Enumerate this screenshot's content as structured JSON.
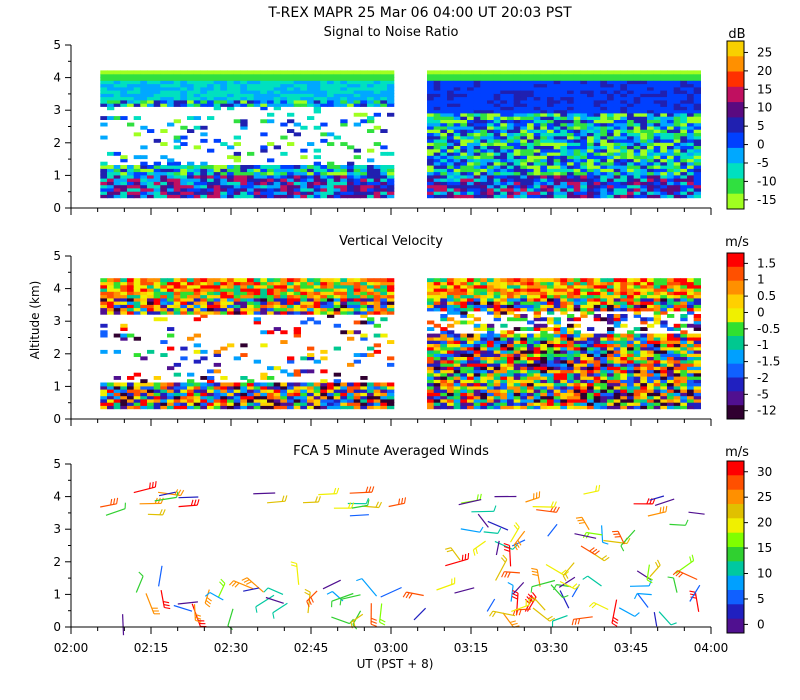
{
  "figure_title": "T-REX   MAPR 25 Mar 06   04:00 UT   20:03   PST",
  "y_axis_label": "Altitude (km)",
  "x_axis_label": "UT  (PST + 8)",
  "chart_data": [
    {
      "type": "heatmap",
      "title": "Signal to Noise Ratio",
      "ylabel": "Altitude (km)",
      "xlabel": "UT  (PST + 8)",
      "x_ticks": [
        "02:00",
        "02:15",
        "02:30",
        "02:45",
        "03:00",
        "03:15",
        "03:30",
        "03:45",
        "04:00"
      ],
      "x_range_min": [
        0,
        120
      ],
      "ylim": [
        0,
        5
      ],
      "y_ticks": [
        "0",
        "1",
        "2",
        "3",
        "4",
        "5"
      ],
      "colorbar_unit": "dB",
      "colorbar_ticks": [
        "25",
        "20",
        "15",
        "10",
        "5",
        "0",
        "-5",
        "-10",
        "-15"
      ],
      "colorbar_colors": [
        "#f8d000",
        "#ff9000",
        "#ff3000",
        "#c01060",
        "#5a0a80",
        "#2020b0",
        "#0040ff",
        "#00a8ff",
        "#00e0c0",
        "#30e040",
        "#a0ff20"
      ],
      "data_gap_min": [
        60,
        66
      ],
      "echo_top_km": 4.2
    },
    {
      "type": "heatmap",
      "title": "Vertical Velocity",
      "ylabel": "Altitude (km)",
      "xlabel": "UT  (PST + 8)",
      "x_ticks": [
        "02:00",
        "02:15",
        "02:30",
        "02:45",
        "03:00",
        "03:15",
        "03:30",
        "03:45",
        "04:00"
      ],
      "x_range_min": [
        0,
        120
      ],
      "ylim": [
        0,
        5
      ],
      "y_ticks": [
        "0",
        "1",
        "2",
        "3",
        "4",
        "5"
      ],
      "colorbar_unit": "m/s",
      "colorbar_ticks": [
        "1.5",
        "1",
        "0.5",
        "0",
        "-0.5",
        "-1",
        "-1.5",
        "-2",
        "-5",
        "-12"
      ],
      "colorbar_colors": [
        "#ff0000",
        "#ff5000",
        "#ff9000",
        "#ffd000",
        "#f0f000",
        "#30e030",
        "#00c890",
        "#00a0ff",
        "#1060ff",
        "#2020c0",
        "#501090",
        "#300030"
      ],
      "data_gap_min": [
        60,
        66
      ],
      "echo_top_km": 4.3
    },
    {
      "type": "scatter",
      "subtype": "wind-barbs",
      "title": "FCA 5 Minute Averaged Winds",
      "ylabel": "Altitude (km)",
      "xlabel": "UT  (PST + 8)",
      "x_ticks": [
        "02:00",
        "02:15",
        "02:30",
        "02:45",
        "03:00",
        "03:15",
        "03:30",
        "03:45",
        "04:00"
      ],
      "x_range_min": [
        0,
        120
      ],
      "ylim": [
        0,
        5
      ],
      "y_ticks": [
        "0",
        "1",
        "2",
        "3",
        "4",
        "5"
      ],
      "colorbar_unit": "m/s",
      "colorbar_ticks": [
        "30",
        "25",
        "20",
        "15",
        "10",
        "5",
        "0"
      ],
      "colorbar_colors": [
        "#ff0000",
        "#ff5000",
        "#ff9000",
        "#e0c000",
        "#f0f000",
        "#80ff00",
        "#30d030",
        "#00c8a0",
        "#00a0ff",
        "#1060ff",
        "#2020c0",
        "#501090"
      ],
      "speed_range_ms": [
        0,
        32
      ],
      "barb_layers": [
        {
          "alt_min_km": 3.4,
          "alt_max_km": 4.2,
          "t_min": 5,
          "t_max": 118
        },
        {
          "alt_min_km": 0.3,
          "alt_max_km": 1.3,
          "t_min": 8,
          "t_max": 118
        },
        {
          "alt_min_km": 1.2,
          "alt_max_km": 3.2,
          "t_min": 70,
          "t_max": 118
        }
      ]
    }
  ]
}
